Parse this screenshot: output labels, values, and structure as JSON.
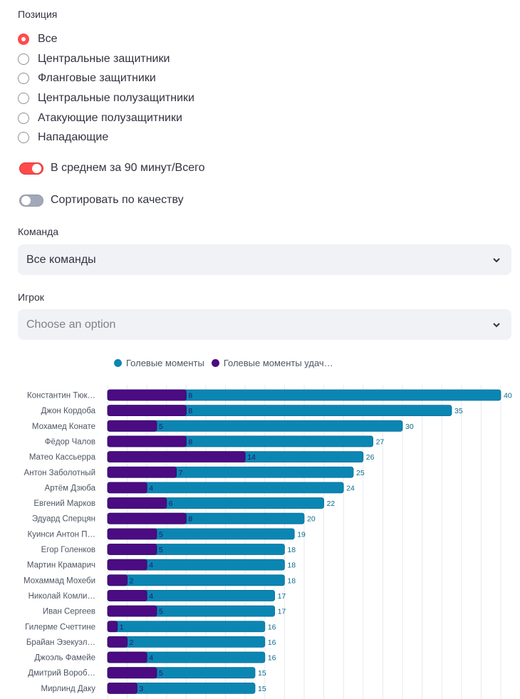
{
  "position": {
    "label": "Позиция",
    "options": [
      {
        "label": "Все",
        "checked": true
      },
      {
        "label": "Центральные защитники",
        "checked": false
      },
      {
        "label": "Фланговые защитники",
        "checked": false
      },
      {
        "label": "Центральные полузащитники",
        "checked": false
      },
      {
        "label": "Атакующие полузащитники",
        "checked": false
      },
      {
        "label": "Нападающие",
        "checked": false
      }
    ]
  },
  "toggles": [
    {
      "label": "В среднем за 90 минут/Всего",
      "on": true
    },
    {
      "label": "Сортировать по качеству",
      "on": false
    }
  ],
  "team": {
    "label": "Команда",
    "value": "Все команды"
  },
  "player": {
    "label": "Игрок",
    "placeholder": "Choose an option"
  },
  "colors": {
    "accent": "#ff4b4b",
    "series_total": "#0b86b3",
    "series_successful": "#4b0b82",
    "label_total": "#0b6a8f",
    "label_successful": "#2a1470"
  },
  "chart_data": {
    "type": "bar",
    "orientation": "horizontal",
    "legend_position": "top",
    "series": [
      {
        "name": "Голевые моменты",
        "values": [
          40,
          35,
          30,
          27,
          26,
          25,
          24,
          22,
          20,
          19,
          18,
          18,
          18,
          17,
          17,
          16,
          16,
          16,
          15,
          15
        ]
      },
      {
        "name": "Голевые моменты удач…",
        "values": [
          8,
          8,
          5,
          8,
          14,
          7,
          4,
          6,
          8,
          5,
          5,
          4,
          2,
          4,
          5,
          1,
          2,
          4,
          5,
          3
        ]
      }
    ],
    "categories": [
      "Константин Тюк…",
      "Джон Кордоба",
      "Мохамед Конате",
      "Фёдор Чалов",
      "Матео Кассьерра",
      "Антон Заболотный",
      "Артём Дзюба",
      "Евгений Марков",
      "Эдуард Сперцян",
      "Куинси Антон П…",
      "Егор Голенков",
      "Мартин Крамарич",
      "Мохаммад Мохеби",
      "Николай Комли…",
      "Иван Сергеев",
      "Гилерме Счеттине",
      "Брайан Эзекуэл…",
      "Джоэль Фамейе",
      "Дмитрий Вороб…",
      "Мирлинд Даку"
    ],
    "xlim": [
      0,
      42
    ],
    "grid": true,
    "grid_step": 2
  }
}
